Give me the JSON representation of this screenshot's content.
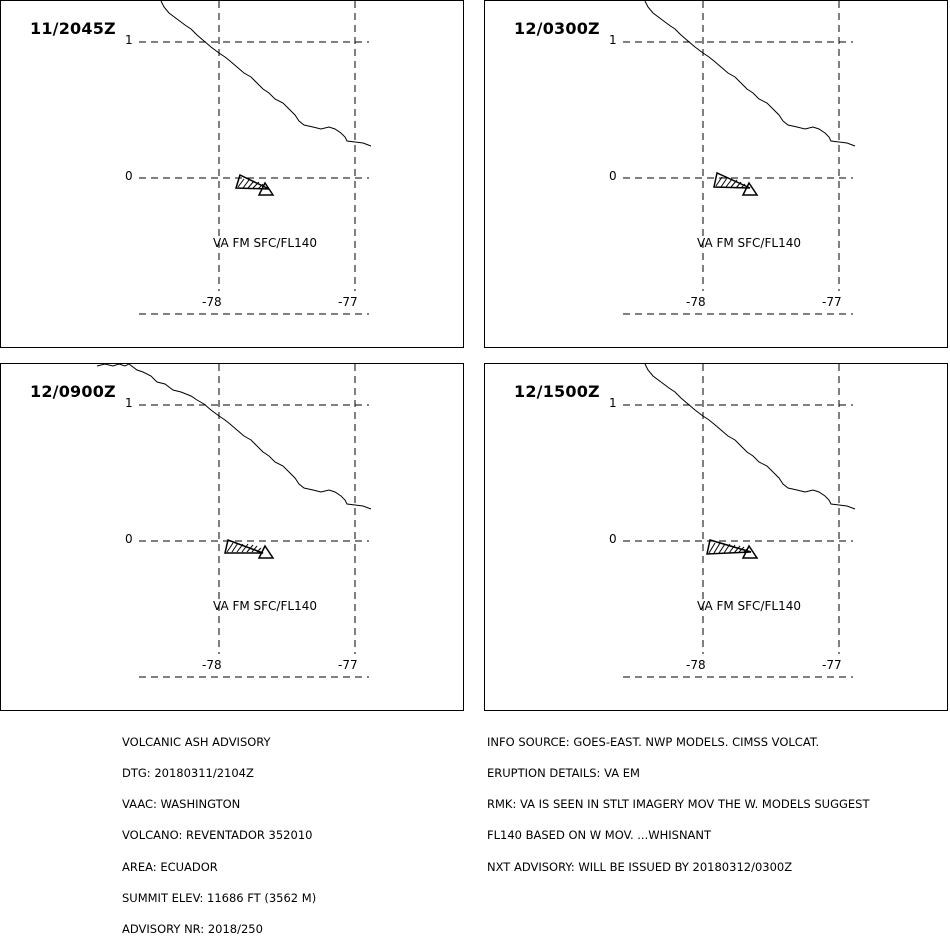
{
  "panels": [
    {
      "time": "11/2045Z",
      "lat_top": "1",
      "lat_bottom": "0",
      "lon_left": "-78",
      "lon_right": "-77",
      "va_label": "VA FM SFC/FL140"
    },
    {
      "time": "12/0300Z",
      "lat_top": "1",
      "lat_bottom": "0",
      "lon_left": "-78",
      "lon_right": "-77",
      "va_label": "VA FM SFC/FL140"
    },
    {
      "time": "12/0900Z",
      "lat_top": "1",
      "lat_bottom": "0",
      "lon_left": "-78",
      "lon_right": "-77",
      "va_label": "VA FM SFC/FL140"
    },
    {
      "time": "12/1500Z",
      "lat_top": "1",
      "lat_bottom": "0",
      "lon_left": "-78",
      "lon_right": "-77",
      "va_label": "VA FM SFC/FL140"
    }
  ],
  "footer_left": [
    "VOLCANIC ASH ADVISORY",
    "DTG: 20180311/2104Z",
    "VAAC: WASHINGTON",
    "VOLCANO: REVENTADOR 352010",
    "AREA: ECUADOR",
    "SUMMIT ELEV: 11686 FT (3562 M)",
    "ADVISORY NR: 2018/250"
  ],
  "footer_right": [
    "INFO SOURCE: GOES-EAST. NWP MODELS. CIMSS VOLCAT.",
    "ERUPTION DETAILS: VA EM",
    "RMK: VA IS SEEN IN STLT IMAGERY MOV THE W. MODELS SUGGEST",
    "FL140 BASED ON W MOV. ...WHISNANT",
    "NXT ADVISORY: WILL BE ISSUED BY 20180312/0300Z"
  ],
  "colors": {
    "line": "#000000",
    "background": "#ffffff"
  }
}
